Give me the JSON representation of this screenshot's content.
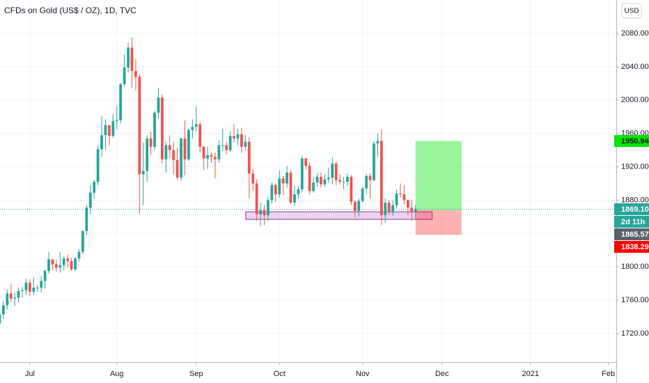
{
  "chart_data": {
    "type": "candlestick",
    "title": "CFDs on Gold (US$ / OZ), 1D, TVC",
    "currency": "USD",
    "up_color": "#26a69a",
    "down_color": "#ef5350",
    "grid": true,
    "xlim": [
      -7.9,
      155.1
    ],
    "ylim": [
      1685.7,
      2120.1
    ],
    "xticks": [
      {
        "value": 0,
        "label": "Jul"
      },
      {
        "value": 23,
        "label": "Aug"
      },
      {
        "value": 44,
        "label": "Sep"
      },
      {
        "value": 66,
        "label": "Oct"
      },
      {
        "value": 88,
        "label": "Nov"
      },
      {
        "value": 109,
        "label": "Dec"
      },
      {
        "value": 132.4,
        "label": "2021"
      },
      {
        "value": 153,
        "label": "Feb"
      }
    ],
    "yticks": [
      {
        "value": 1720,
        "label": "1720.00"
      },
      {
        "value": 1760,
        "label": "1760.00"
      },
      {
        "value": 1800,
        "label": "1800.00"
      },
      {
        "value": 1840,
        "label": "1840.00"
      },
      {
        "value": 1880,
        "label": "1880.00"
      },
      {
        "value": 1920,
        "label": "1920.00"
      },
      {
        "value": 1960,
        "label": "1960.00"
      },
      {
        "value": 2000,
        "label": "2000.00"
      },
      {
        "value": 2040,
        "label": "2040.00"
      },
      {
        "value": 2080,
        "label": "2080.00"
      }
    ],
    "x": [
      -8,
      -7,
      -6,
      -5,
      -4,
      -3,
      -2,
      -1,
      0,
      1,
      2,
      3,
      4,
      5,
      6,
      7,
      8,
      9,
      10,
      11,
      12,
      13,
      14,
      15,
      16,
      17,
      18,
      19,
      20,
      21,
      22,
      23,
      24,
      25,
      26,
      27,
      28,
      29,
      30,
      31,
      32,
      33,
      34,
      35,
      36,
      37,
      38,
      39,
      40,
      41,
      42,
      43,
      44,
      45,
      46,
      47,
      48,
      49,
      50,
      51,
      52,
      53,
      54,
      55,
      56,
      57,
      58,
      59,
      60,
      61,
      62,
      63,
      64,
      65,
      66,
      67,
      68,
      69,
      70,
      71,
      72,
      73,
      74,
      75,
      76,
      77,
      78,
      79,
      80,
      81,
      82,
      83,
      84,
      85,
      86,
      87,
      88,
      89,
      90,
      91,
      92,
      93,
      94,
      95,
      96,
      97,
      98,
      99,
      100,
      101,
      102
    ],
    "open": [
      1732,
      1743,
      1754,
      1768,
      1762,
      1763,
      1771,
      1772,
      1781,
      1770,
      1775,
      1775,
      1783,
      1795,
      1809,
      1803,
      1799,
      1802,
      1810,
      1807,
      1797,
      1810,
      1818,
      1843,
      1871,
      1889,
      1902,
      1941,
      1958,
      1970,
      1957,
      1975,
      1976,
      2019,
      2039,
      2063,
      2035,
      2028,
      1911,
      1915,
      1954,
      1944,
      1985,
      2003,
      1929,
      1946,
      1940,
      1928,
      1907,
      1954,
      1929,
      1964,
      1968,
      1971,
      1944,
      1930,
      1934,
      1932,
      1929,
      1946,
      1946,
      1940,
      1957,
      1954,
      1959,
      1944,
      1950,
      1912,
      1900,
      1863,
      1868,
      1862,
      1880,
      1898,
      1887,
      1906,
      1900,
      1913,
      1877,
      1887,
      1893,
      1930,
      1921,
      1891,
      1901,
      1908,
      1899,
      1905,
      1907,
      1924,
      1904,
      1902,
      1902,
      1908,
      1878,
      1867,
      1879,
      1894,
      1909,
      1904,
      1948,
      1951,
      1862,
      1877,
      1866,
      1874,
      1888,
      1887,
      1880,
      1871,
      1866
    ],
    "high": [
      1748,
      1759,
      1773,
      1779,
      1769,
      1775,
      1776,
      1786,
      1785,
      1787,
      1778,
      1789,
      1797,
      1818,
      1809,
      1809,
      1818,
      1813,
      1815,
      1811,
      1812,
      1821,
      1844,
      1874,
      1898,
      1904,
      1945,
      1981,
      1977,
      1970,
      1983,
      1993,
      2021,
      2055,
      2069,
      2075,
      2049,
      2031,
      1949,
      1958,
      1962,
      1987,
      2015,
      2007,
      1951,
      1958,
      1950,
      1943,
      1955,
      1976,
      1967,
      1977,
      1992,
      1974,
      1945,
      1944,
      1937,
      1937,
      1952,
      1966,
      1950,
      1963,
      1971,
      1966,
      1967,
      1958,
      1955,
      1917,
      1905,
      1877,
      1874,
      1884,
      1901,
      1900,
      1916,
      1909,
      1921,
      1916,
      1897,
      1897,
      1933,
      1931,
      1925,
      1908,
      1912,
      1913,
      1911,
      1919,
      1932,
      1926,
      1911,
      1908,
      1912,
      1910,
      1880,
      1882,
      1896,
      1911,
      1912,
      1951,
      1960,
      1965,
      1882,
      1880,
      1880,
      1893,
      1900,
      1898,
      1881,
      1880,
      1874
    ],
    "low": [
      1727,
      1737,
      1749,
      1758,
      1753,
      1757,
      1763,
      1766,
      1765,
      1766,
      1770,
      1769,
      1774,
      1792,
      1796,
      1794,
      1793,
      1796,
      1799,
      1795,
      1795,
      1806,
      1815,
      1838,
      1863,
      1882,
      1898,
      1932,
      1940,
      1946,
      1955,
      1965,
      1972,
      2016,
      2033,
      2015,
      2012,
      1863,
      1874,
      1902,
      1934,
      1940,
      1978,
      1924,
      1913,
      1930,
      1911,
      1904,
      1903,
      1910,
      1927,
      1954,
      1962,
      1937,
      1916,
      1917,
      1925,
      1906,
      1925,
      1939,
      1935,
      1938,
      1949,
      1946,
      1937,
      1940,
      1882,
      1891,
      1855,
      1849,
      1850,
      1855,
      1876,
      1878,
      1883,
      1886,
      1895,
      1875,
      1873,
      1881,
      1889,
      1917,
      1887,
      1889,
      1896,
      1895,
      1896,
      1901,
      1899,
      1898,
      1899,
      1893,
      1897,
      1874,
      1859,
      1860,
      1877,
      1887,
      1882,
      1903,
      1931,
      1850,
      1853,
      1862,
      1861,
      1870,
      1883,
      1875,
      1862,
      1855,
      1858
    ],
    "close": [
      1743,
      1754,
      1768,
      1762,
      1763,
      1771,
      1772,
      1781,
      1770,
      1775,
      1775,
      1783,
      1795,
      1809,
      1803,
      1799,
      1802,
      1810,
      1807,
      1797,
      1810,
      1818,
      1843,
      1871,
      1889,
      1902,
      1941,
      1958,
      1970,
      1957,
      1975,
      1976,
      2019,
      2039,
      2063,
      2035,
      2028,
      1911,
      1915,
      1954,
      1944,
      1985,
      2003,
      1929,
      1946,
      1940,
      1928,
      1907,
      1954,
      1929,
      1964,
      1968,
      1971,
      1944,
      1930,
      1934,
      1932,
      1929,
      1946,
      1946,
      1940,
      1957,
      1954,
      1959,
      1944,
      1950,
      1912,
      1900,
      1863,
      1868,
      1862,
      1880,
      1898,
      1887,
      1906,
      1900,
      1913,
      1877,
      1887,
      1893,
      1930,
      1921,
      1891,
      1901,
      1908,
      1899,
      1905,
      1907,
      1924,
      1904,
      1902,
      1902,
      1908,
      1878,
      1867,
      1879,
      1894,
      1909,
      1904,
      1948,
      1951,
      1862,
      1877,
      1866,
      1874,
      1888,
      1887,
      1880,
      1871,
      1866,
      1869.1
    ],
    "rectangle": {
      "x": [
        57.1,
        106.4
      ],
      "y": [
        1857,
        1866
      ],
      "color": "#9c27b0"
    },
    "position": {
      "x": [
        102,
        114.2
      ],
      "entry": 1868,
      "target": 1950.94,
      "stop": 1838.29
    },
    "price_marks": {
      "values": [
        1950.94,
        1869.1,
        1865.57,
        1838.29
      ],
      "value_labels": [
        "1950.94",
        "1869.10",
        "1865.57",
        "1838.29"
      ],
      "colors": [
        "#00e600",
        "#26a69a",
        "#5d606b",
        "#ff0000"
      ]
    },
    "countdown": "2d 11h"
  }
}
